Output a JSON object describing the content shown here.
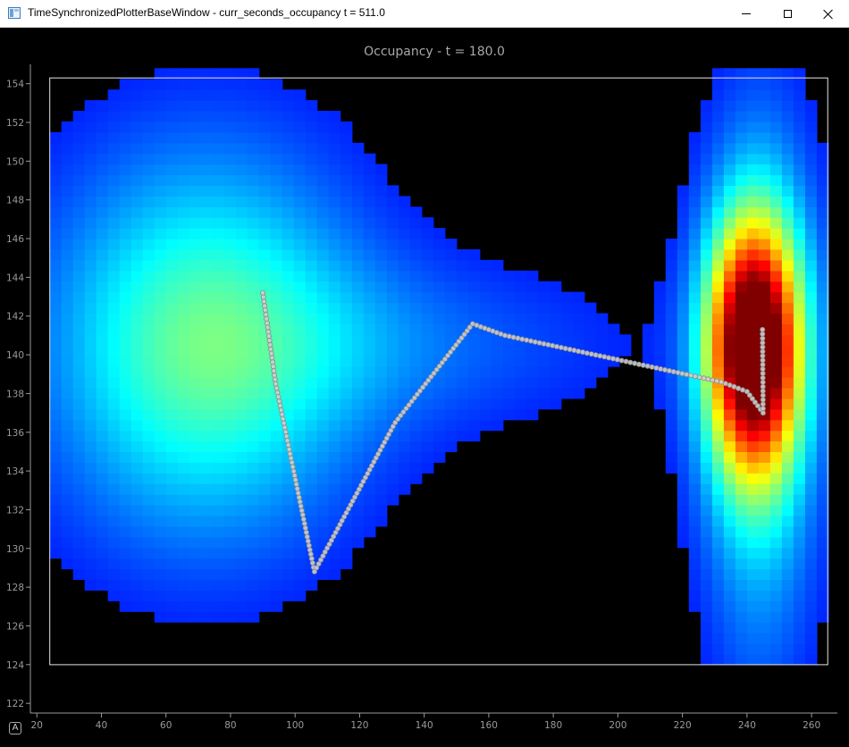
{
  "window": {
    "title": "TimeSynchronizedPlotterBaseWindow - curr_seconds_occupancy t = 511.0",
    "minimize_icon": "minimize-icon",
    "maximize_icon": "maximize-icon",
    "close_icon": "close-icon"
  },
  "plot": {
    "auto_range_label": "A"
  },
  "chart_data": {
    "type": "heatmap",
    "title": "Occupancy - t = 180.0",
    "xlabel": "",
    "ylabel": "",
    "xlim": [
      18,
      268
    ],
    "ylim": [
      121.5,
      155
    ],
    "x_ticks": [
      20,
      40,
      60,
      80,
      100,
      120,
      140,
      160,
      180,
      200,
      220,
      240,
      260
    ],
    "y_ticks": [
      122,
      124,
      126,
      128,
      130,
      132,
      134,
      136,
      138,
      140,
      142,
      144,
      146,
      148,
      150,
      152,
      154
    ],
    "grid": false,
    "colormap": "jet",
    "background_color": "#000000",
    "axis_color": "#9a9a9a",
    "bounds_rect": {
      "x": [
        24,
        265
      ],
      "y": [
        124,
        154.3
      ]
    },
    "blobs": [
      {
        "x": 72,
        "y": 140.5,
        "sx": 34,
        "sy": 7,
        "amp": 0.38
      },
      {
        "x": 140,
        "y": 140.5,
        "sx": 48,
        "sy": 3.2,
        "amp": 0.1
      },
      {
        "x": 242,
        "y": 140.5,
        "sx": 10,
        "sy": 4.5,
        "amp": 0.98
      },
      {
        "x": 244,
        "y": 138,
        "sx": 13,
        "sy": 10,
        "amp": 0.28
      }
    ],
    "support_threshold": 0.045,
    "trajectory": {
      "vertices": [
        {
          "x": 90,
          "y": 143.2
        },
        {
          "x": 94,
          "y": 138.5
        },
        {
          "x": 106,
          "y": 128.8
        },
        {
          "x": 131,
          "y": 136.5
        },
        {
          "x": 155,
          "y": 141.6
        },
        {
          "x": 165,
          "y": 141.0
        },
        {
          "x": 232,
          "y": 138.6
        },
        {
          "x": 240,
          "y": 138.1
        },
        {
          "x": 245,
          "y": 137.0
        },
        {
          "x": 244.8,
          "y": 141.3
        }
      ],
      "marker_color": "#cfcfcf",
      "marker_edge": "#8a8a8a"
    }
  }
}
